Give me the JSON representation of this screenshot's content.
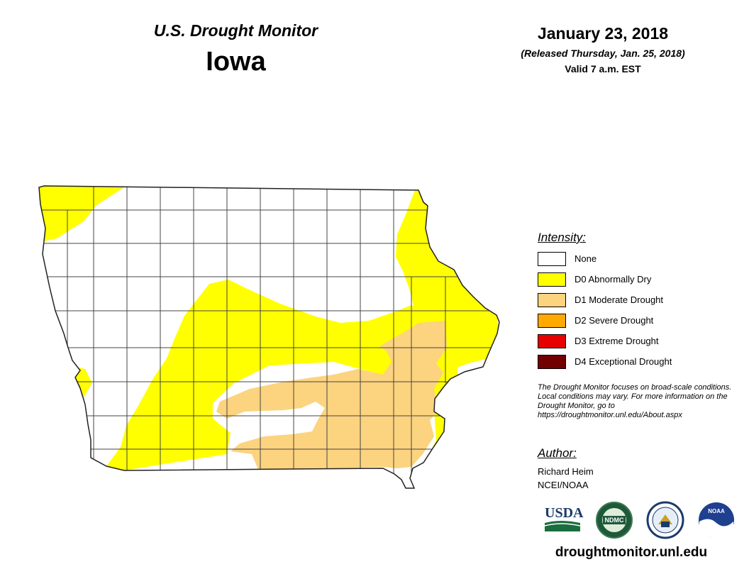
{
  "header": {
    "monitor_title": "U.S. Drought Monitor",
    "state": "Iowa",
    "date": "January 23, 2018",
    "released": "(Released Thursday, Jan. 25, 2018)",
    "valid": "Valid 7 a.m. EST"
  },
  "legend": {
    "title": "Intensity:",
    "items": [
      {
        "label": "None",
        "color": "#ffffff"
      },
      {
        "label": "D0 Abnormally Dry",
        "color": "#ffff00"
      },
      {
        "label": "D1 Moderate Drought",
        "color": "#fcd37f"
      },
      {
        "label": "D2 Severe Drought",
        "color": "#ffaa00"
      },
      {
        "label": "D3 Extreme Drought",
        "color": "#e60000"
      },
      {
        "label": "D4 Exceptional Drought",
        "color": "#730000"
      }
    ]
  },
  "note": "The Drought Monitor focuses on broad-scale conditions. Local conditions may vary. For more information on the Drought Monitor, go to https://droughtmonitor.unl.edu/About.aspx",
  "author": {
    "title": "Author:",
    "name": "Richard Heim",
    "org": "NCEI/NOAA"
  },
  "logos": {
    "usda": "USDA",
    "ndmc": "NDMC",
    "noaa": "NOAA"
  },
  "footer_url": "droughtmonitor.unl.edu"
}
